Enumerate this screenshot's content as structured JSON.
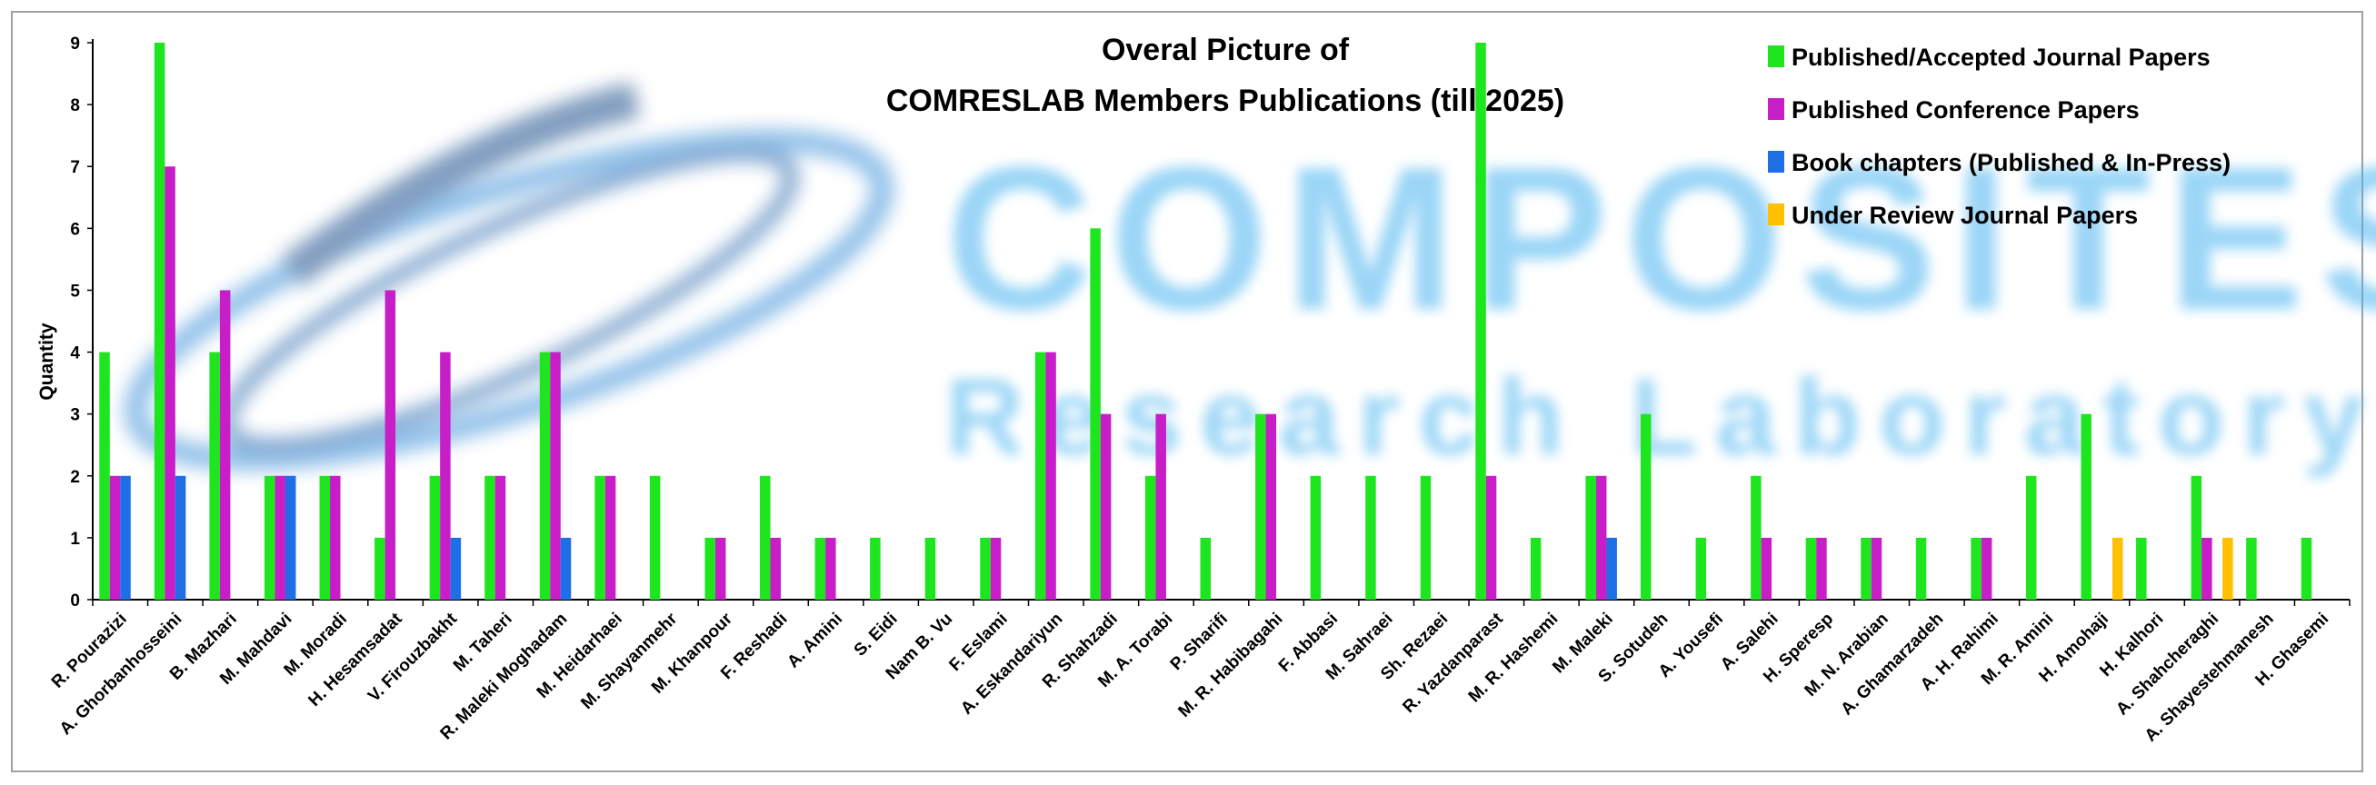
{
  "chart_data": {
    "type": "bar",
    "title_line1": "Overal Picture of",
    "title_line2": {
      "part1": "COM",
      "part2": "RESLAB",
      "part3": " Members Publications",
      "part4": " (till 2025)",
      "colors": [
        "#3d9be9",
        "#1a1aa0",
        "#000000",
        "#000000"
      ]
    },
    "ylabel": "Quantity",
    "xlabel": "",
    "ylim": [
      0,
      9
    ],
    "yticks": [
      0,
      1,
      2,
      3,
      4,
      5,
      6,
      7,
      8,
      9
    ],
    "grid": false,
    "legend_position": "top-right",
    "categories": [
      "R. Pourazizi",
      "A. Ghorbanhosseini",
      "B. Mazhari",
      "M. Mahdavi",
      "M. Moradi",
      "H. Hesamsadat",
      "V. Firouzbakht",
      "M. Taheri",
      "R. Maleki Moghadam",
      "M. Heidarhaei",
      "M. Shayanmehr",
      "M. Khanpour",
      "F. Reshadi",
      "A. Amini",
      "S. Eidi",
      "Nam B. Vu",
      "F. Eslami",
      "A. Eskandariyun",
      "R. Shahzadi",
      "M. A. Torabi",
      "P. Sharifi",
      "M. R. Habibagahi",
      "F. Abbasi",
      "M. Sahraei",
      "Sh. Rezaei",
      "R. Yazdanparast",
      "M. R. Hashemi",
      "M. Maleki",
      "S. Sotudeh",
      "A. Yousefi",
      "A. Salehi",
      "H. Speresp",
      "M. N. Arabian",
      "A. Ghamarzadeh",
      "A. H. Rahimi",
      "M. R. Amini",
      "H. Amohaji",
      "H. Kalhori",
      "A. Shahcheraghi",
      "A. Shayestehmanesh",
      "H. Ghasemi"
    ],
    "series": [
      {
        "name": "Published/Accepted Journal Papers",
        "color": "#1ee61e",
        "values": [
          4,
          9,
          4,
          2,
          2,
          1,
          2,
          2,
          4,
          2,
          2,
          1,
          2,
          1,
          1,
          1,
          1,
          4,
          6,
          2,
          1,
          3,
          2,
          2,
          2,
          9,
          1,
          2,
          3,
          1,
          2,
          1,
          1,
          1,
          1,
          2,
          3,
          1,
          2,
          1,
          1
        ]
      },
      {
        "name": "Published Conference Papers",
        "color": "#c81ec8",
        "values": [
          2,
          7,
          5,
          2,
          2,
          5,
          4,
          2,
          4,
          2,
          0,
          1,
          1,
          1,
          0,
          0,
          1,
          4,
          3,
          3,
          0,
          3,
          0,
          0,
          0,
          2,
          0,
          2,
          0,
          0,
          1,
          1,
          1,
          0,
          1,
          0,
          0,
          0,
          1,
          0,
          0
        ]
      },
      {
        "name": "Book chapters (Published & In-Press)",
        "color": "#1e6ee6",
        "values": [
          2,
          2,
          0,
          2,
          0,
          0,
          1,
          0,
          1,
          0,
          0,
          0,
          0,
          0,
          0,
          0,
          0,
          0,
          0,
          0,
          0,
          0,
          0,
          0,
          0,
          0,
          0,
          1,
          0,
          0,
          0,
          0,
          0,
          0,
          0,
          0,
          0,
          0,
          0,
          0,
          0
        ]
      },
      {
        "name": "Under Review Journal Papers",
        "color": "#ffc000",
        "values": [
          0,
          0,
          0,
          0,
          0,
          0,
          0,
          0,
          0,
          0,
          0,
          0,
          0,
          0,
          0,
          0,
          0,
          0,
          0,
          0,
          0,
          0,
          0,
          0,
          0,
          0,
          0,
          0,
          0,
          0,
          0,
          0,
          0,
          0,
          0,
          0,
          1,
          0,
          1,
          0,
          0
        ]
      }
    ]
  },
  "watermark": {
    "line1": "COMPOSITES",
    "line2": "Research Laboratory",
    "color": "#49b4f0"
  }
}
